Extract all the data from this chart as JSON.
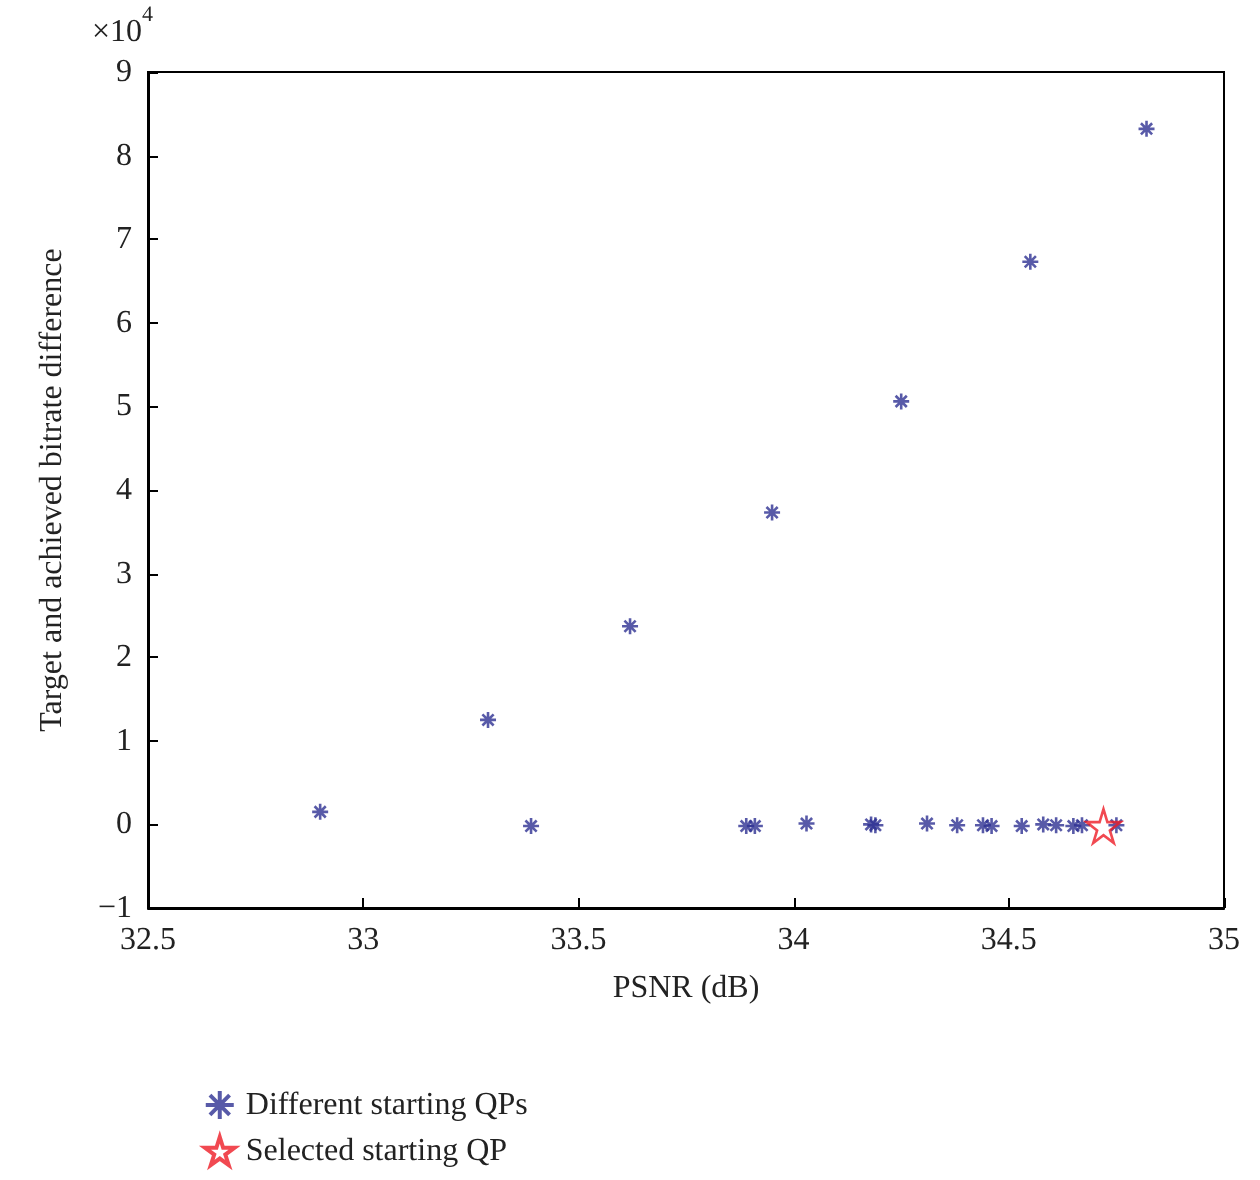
{
  "chart_data": {
    "type": "scatter",
    "xlabel": "PSNR (dB)",
    "ylabel": "Target and achieved bitrate difference",
    "annotations": [
      "×10$^{4}$"
    ],
    "series": [
      {
        "name": "Different starting QPs",
        "color": "#2e3192",
        "marker": "cross",
        "x": [
          32.9,
          33.29,
          33.39,
          33.62,
          33.89,
          33.91,
          33.95,
          34.03,
          34.18,
          34.19,
          34.25,
          34.31,
          34.38,
          34.44,
          34.46,
          34.53,
          34.55,
          34.58,
          34.61,
          34.65,
          34.67,
          34.75,
          34.82
        ],
        "values": [
          0.15,
          1.25,
          -0.02,
          2.37,
          -0.02,
          -0.02,
          3.73,
          0.01,
          0,
          -0.01,
          5.06,
          0.01,
          -0.01,
          -0.01,
          -0.02,
          -0.02,
          6.73,
          0,
          -0.01,
          -0.02,
          -0.01,
          -0.01,
          8.32
        ]
      },
      {
        "name": "Selected starting QP",
        "color": "#ee1c25",
        "marker": "star",
        "x": [
          34.72
        ],
        "values": [
          -0.02
        ]
      }
    ],
    "xlim": [
      32.5,
      35
    ],
    "xticks": [
      32.5,
      33,
      33.5,
      34,
      34.5,
      35
    ],
    "ylim": [
      -1,
      9
    ],
    "yticks": [
      -1,
      0,
      1,
      2,
      3,
      4,
      5,
      6,
      7,
      8,
      9
    ],
    "grid": false,
    "legend": "bottom left"
  }
}
